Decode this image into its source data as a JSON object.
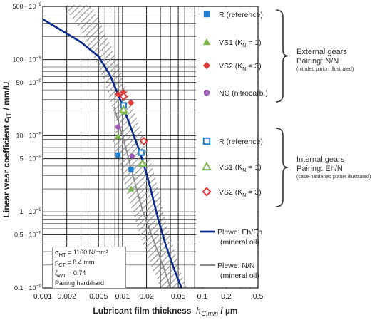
{
  "chart_data": {
    "type": "scatter",
    "xlabel": "Lubricant film thickness",
    "xlabel_math": "h",
    "xlabel_sub": "C,min",
    "xlabel_unit": " / µm",
    "ylabel": "Linear wear coefficient c",
    "ylabel_sub": "lT",
    "ylabel_unit": " / mm/U",
    "x_scale": "log",
    "y_scale": "log",
    "xlim": [
      0.001,
      0.5
    ],
    "ylim": [
      1e-10,
      5e-07
    ],
    "grid": true,
    "x_ticks": [
      {
        "v": 0.001,
        "label": "0.001"
      },
      {
        "v": 0.002,
        "label": "0.002"
      },
      {
        "v": 0.005,
        "label": "0.005"
      },
      {
        "v": 0.01,
        "label": "0.01"
      },
      {
        "v": 0.02,
        "label": "0.02"
      },
      {
        "v": 0.05,
        "label": "0.05"
      },
      {
        "v": 0.1,
        "label": "0.1"
      },
      {
        "v": 0.2,
        "label": "0.2"
      },
      {
        "v": 0.5,
        "label": "0.5"
      }
    ],
    "y_ticks": [
      {
        "v": 5e-07,
        "label": "500 · 10",
        "exp": "−9"
      },
      {
        "v": 1e-07,
        "label": "100 · 10",
        "exp": "−9"
      },
      {
        "v": 5e-08,
        "label": "50 · 10",
        "exp": "−9"
      },
      {
        "v": 1e-08,
        "label": "10 · 10",
        "exp": "−9"
      },
      {
        "v": 5e-09,
        "label": "5 · 10",
        "exp": "−9"
      },
      {
        "v": 1e-09,
        "label": "1 · 10",
        "exp": "−9"
      },
      {
        "v": 5e-10,
        "label": "0.5 · 10",
        "exp": "−9"
      },
      {
        "v": 1e-10,
        "label": "0.1 · 10",
        "exp": "−9"
      }
    ],
    "series": [
      {
        "name": "R (reference)",
        "marker": "square",
        "filled": true,
        "color": "#1f7fd1",
        "points": [
          {
            "x": 0.0088,
            "y": 5.6e-09
          },
          {
            "x": 0.0172,
            "y": 6e-09
          },
          {
            "x": 0.0128,
            "y": 3.6e-09
          }
        ]
      },
      {
        "name": "VS1",
        "kn_label": "(K",
        "kn_sub": "N",
        "kn_rest": " = 1)",
        "marker": "triangle",
        "filled": true,
        "color": "#7ab648",
        "points": [
          {
            "x": 0.0088,
            "y": 9.8e-09
          },
          {
            "x": 0.0128,
            "y": 2e-09
          },
          {
            "x": 0.0105,
            "y": 2.05e-08
          }
        ]
      },
      {
        "name": "VS2",
        "kn_label": "(K",
        "kn_sub": "N",
        "kn_rest": " = 3)",
        "marker": "diamond",
        "filled": true,
        "color": "#e03c3c",
        "points": [
          {
            "x": 0.0088,
            "y": 3.5e-08
          },
          {
            "x": 0.0103,
            "y": 3.7e-08
          },
          {
            "x": 0.0128,
            "y": 2.7e-08
          }
        ]
      },
      {
        "name": "NC (nitrocarb.)",
        "marker": "circle",
        "filled": true,
        "color": "#9b59b6",
        "points": [
          {
            "x": 0.0088,
            "y": 1.3e-08
          },
          {
            "x": 0.0103,
            "y": 2.5e-08
          },
          {
            "x": 0.0132,
            "y": 5.4e-09
          }
        ]
      },
      {
        "name": "R (reference)",
        "marker": "square",
        "filled": false,
        "color": "#1f7fd1",
        "points": [
          {
            "x": 0.0103,
            "y": 2.5e-08
          },
          {
            "x": 0.0172,
            "y": 6e-09
          }
        ]
      },
      {
        "name": "VS1",
        "kn_label": "(K",
        "kn_sub": "N",
        "kn_rest": " = 1)",
        "marker": "triangle",
        "filled": false,
        "color": "#7ab648",
        "points": [
          {
            "x": 0.0103,
            "y": 2.2e-08
          },
          {
            "x": 0.0178,
            "y": 4.3e-09
          }
        ]
      },
      {
        "name": "VS2",
        "kn_label": "(K",
        "kn_sub": "N",
        "kn_rest": " = 3)",
        "marker": "diamond",
        "filled": false,
        "color": "#e03c3c",
        "points": [
          {
            "x": 0.0103,
            "y": 3.3e-08
          },
          {
            "x": 0.0185,
            "y": 8.5e-09
          }
        ]
      }
    ],
    "curves": [
      {
        "name": "Plewe: Eh/Eh",
        "name2": "(mineral oil)",
        "color": "#0a2b8c",
        "points": [
          [
            0.001,
            3.4e-07
          ],
          [
            0.002,
            2.2e-07
          ],
          [
            0.003,
            1.7e-07
          ],
          [
            0.005,
            1.1e-07
          ],
          [
            0.007,
            6.2e-08
          ],
          [
            0.01,
            2.5e-08
          ],
          [
            0.013,
            1.2e-08
          ],
          [
            0.017,
            5.6e-09
          ],
          [
            0.022,
            2.2e-09
          ],
          [
            0.028,
            8e-10
          ],
          [
            0.035,
            3.6e-10
          ],
          [
            0.045,
            1.7e-10
          ],
          [
            0.055,
            1e-10
          ]
        ]
      },
      {
        "name": "Plewe: N/N",
        "name2": "(mineral oil)",
        "color": "#8c8c8c",
        "points": [
          [
            0.0078,
            2.4e-08
          ],
          [
            0.01,
            1e-08
          ],
          [
            0.013,
            3.5e-09
          ],
          [
            0.018,
            1e-09
          ],
          [
            0.025,
            4e-10
          ],
          [
            0.033,
            1.8e-10
          ],
          [
            0.04,
            1e-10
          ]
        ]
      }
    ],
    "bands": [
      {
        "color": "#9a9a9a",
        "upper": [
          [
            0.004,
            5.2e-07
          ],
          [
            0.005,
            3.5e-07
          ],
          [
            0.007,
            1.6e-07
          ],
          [
            0.01,
            6e-08
          ],
          [
            0.013,
            2.6e-08
          ],
          [
            0.017,
            1.2e-08
          ],
          [
            0.022,
            5e-09
          ],
          [
            0.028,
            2e-09
          ],
          [
            0.035,
            7.5e-10
          ],
          [
            0.045,
            3e-10
          ],
          [
            0.055,
            1.5e-10
          ],
          [
            0.065,
            1e-10
          ]
        ],
        "lower": [
          [
            0.035,
            1e-10
          ],
          [
            0.028,
            1.8e-10
          ],
          [
            0.022,
            4.5e-10
          ],
          [
            0.017,
            1.3e-09
          ],
          [
            0.013,
            3e-09
          ],
          [
            0.01,
            8e-09
          ],
          [
            0.008,
            1.8e-08
          ],
          [
            0.007,
            3e-08
          ],
          [
            0.005,
            8e-08
          ],
          [
            0.003,
            2.4e-07
          ],
          [
            0.0018,
            5.2e-07
          ]
        ]
      },
      {
        "color": "#9a9a9a",
        "upper": [
          [
            0.0085,
            1.5e-08
          ],
          [
            0.011,
            6.5e-09
          ],
          [
            0.014,
            2.6e-09
          ],
          [
            0.02,
            8.5e-10
          ],
          [
            0.028,
            3e-10
          ],
          [
            0.036,
            1.5e-10
          ],
          [
            0.045,
            1e-10
          ]
        ],
        "lower": [
          [
            0.03,
            1e-10
          ],
          [
            0.024,
            1.7e-10
          ],
          [
            0.018,
            3.8e-10
          ],
          [
            0.013,
            1.1e-09
          ],
          [
            0.0095,
            3.5e-09
          ],
          [
            0.0075,
            8.5e-09
          ]
        ]
      }
    ]
  },
  "legend": {
    "curve_items": [
      {
        "label": "Plewe: Eh/Eh",
        "label2": "(mineral oil)",
        "color": "#0a2b8c"
      },
      {
        "label": "Plewe: N/N",
        "label2": "(mineral oil)",
        "color": "#8c8c8c"
      }
    ]
  },
  "groups": {
    "external": {
      "title": "External gears",
      "pairing": "Pairing: N/N",
      "note": "(nitrided pinion illustrated)"
    },
    "internal": {
      "title": "Internal gears",
      "pairing": "Pairing: Eh/N",
      "note": "(case-hardened planet illustrated)"
    }
  },
  "annotation": {
    "sigma_sym": "σ",
    "sigma_sub": "HT",
    "sigma_val": " = 1160 N/mm²",
    "rho_sym": "ρ",
    "rho_sub": "CT",
    "rho_val": " = 8.4 mm",
    "zeta_sym": "ζ",
    "zeta_sub": "WT",
    "zeta_val": " = 0.74",
    "pairing": "Pairing hard/hard"
  }
}
